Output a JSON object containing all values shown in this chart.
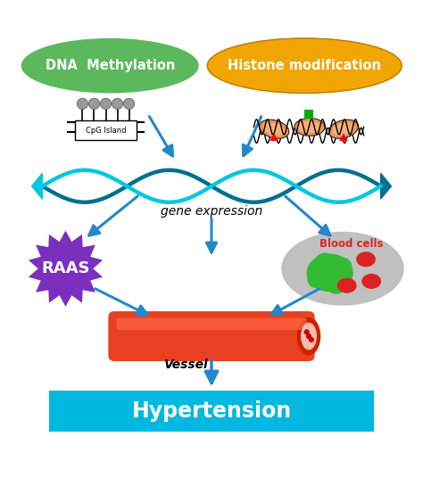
{
  "bg_color": "#ffffff",
  "dna_methyl_label": "DNA  Methylation",
  "histone_mod_label": "Histone modification",
  "gene_expr_label": "gene expression",
  "raas_label": "RAAS",
  "blood_cells_label": "Blood cells",
  "vessel_label": "Vessel",
  "hypertension_label": "Hypertension",
  "arrow_color": "#2288cc",
  "dna_methyl_bg": "#5cb85c",
  "dna_methyl_text": "#ffffff",
  "histone_mod_bg": "#f0a500",
  "histone_mod_text": "#ffffff",
  "raas_bg": "#7b2fbe",
  "raas_text": "#ffffff",
  "hyper_bg": "#00b8e0",
  "hyper_text": "#ffffff",
  "blood_cell_bg": "#c0c0c0",
  "vessel_color": "#e84020",
  "vessel_highlight": "#ff6644"
}
